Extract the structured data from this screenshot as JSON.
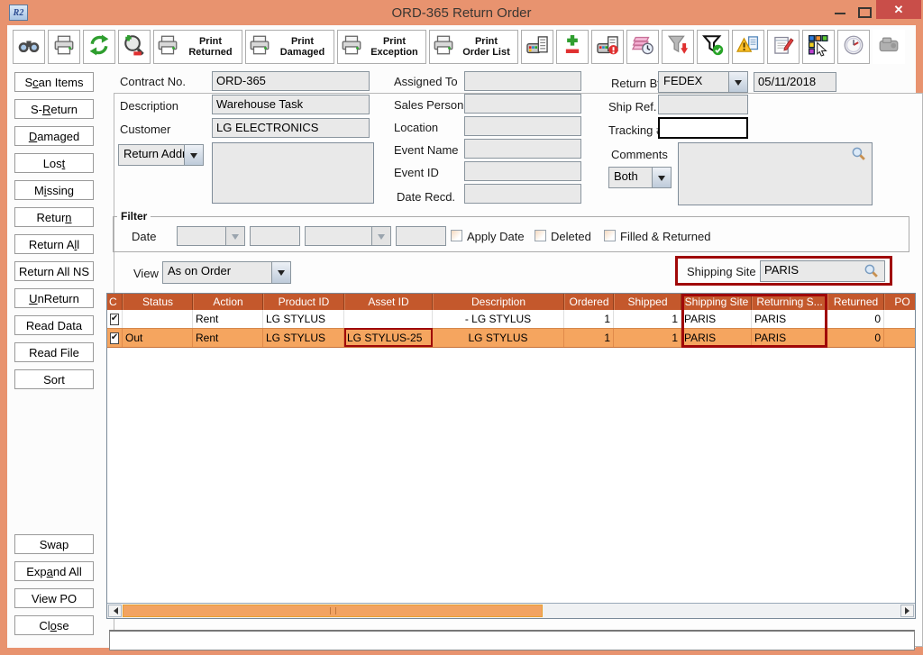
{
  "window": {
    "title": "ORD-365 Return Order",
    "app_icon": "R2"
  },
  "toolbar": {
    "buttons": [
      {
        "type": "icon",
        "icon": "binoculars-icon",
        "name": "find-button"
      },
      {
        "type": "icon",
        "icon": "printer-icon",
        "name": "print-button"
      },
      {
        "type": "icon",
        "icon": "refresh-icon",
        "name": "refresh-button"
      },
      {
        "type": "icon",
        "icon": "zoom-icon",
        "name": "zoom-button"
      },
      {
        "type": "print",
        "icon": "printer-icon",
        "name": "print-returned-button",
        "line1": "Print",
        "line2": "Returned"
      },
      {
        "type": "print",
        "icon": "printer-icon",
        "name": "print-damaged-button",
        "line1": "Print",
        "line2": "Damaged"
      },
      {
        "type": "print",
        "icon": "printer-icon",
        "name": "print-exception-button",
        "line1": "Print",
        "line2": "Exception"
      },
      {
        "type": "print",
        "icon": "printer-icon",
        "name": "print-order-list-button",
        "line1": "Print",
        "line2": "Order List"
      },
      {
        "type": "icon",
        "icon": "scan-device-icon",
        "name": "scan-equipment-button"
      },
      {
        "type": "icon",
        "icon": "plus-minus-icon",
        "name": "add-remove-button"
      },
      {
        "type": "icon",
        "icon": "scan-alert-icon",
        "name": "scan-exception-button"
      },
      {
        "type": "icon",
        "icon": "notes-clock-icon",
        "name": "history-notes-button"
      },
      {
        "type": "icon",
        "icon": "funnel-arrow-icon",
        "name": "apply-filter-button"
      },
      {
        "type": "icon",
        "icon": "funnel-check-icon",
        "name": "filter-ok-button"
      },
      {
        "type": "icon",
        "icon": "warning-doc-icon",
        "name": "exception-report-button"
      },
      {
        "type": "icon",
        "icon": "notepad-pencil-icon",
        "name": "edit-notes-button"
      },
      {
        "type": "icon",
        "icon": "layout-cursor-icon",
        "name": "layout-select-button"
      },
      {
        "type": "icon",
        "icon": "clock-icon",
        "name": "time-button"
      },
      {
        "type": "icon",
        "icon": "device-gray-icon",
        "name": "device-button",
        "disabled": true
      }
    ]
  },
  "sidebar": {
    "top": [
      {
        "label": "Scan Items",
        "u": 1
      },
      {
        "label": "S-Return",
        "u": 2
      },
      {
        "label": "Damaged",
        "u": 0
      },
      {
        "label": "Lost",
        "u": 3
      },
      {
        "label": "Missing",
        "u": 1
      },
      {
        "label": "Return",
        "u": 5
      },
      {
        "label": "Return All",
        "u": 8
      },
      {
        "label": "Return All NS",
        "u": -1
      },
      {
        "label": "UnReturn",
        "u": 0
      },
      {
        "label": "Read Data",
        "u": -1
      },
      {
        "label": "Read File",
        "u": -1
      },
      {
        "label": "Sort",
        "u": -1
      }
    ],
    "bottom": [
      {
        "label": "Swap",
        "u": -1
      },
      {
        "label": "Expand All",
        "u": 3
      },
      {
        "label": "View PO",
        "u": -1
      },
      {
        "label": "Close",
        "u": 2
      }
    ]
  },
  "form": {
    "contract_no": {
      "label": "Contract No.",
      "value": "ORD-365"
    },
    "description": {
      "label": "Description",
      "value": "Warehouse Task"
    },
    "customer": {
      "label": "Customer",
      "value": "LG ELECTRONICS"
    },
    "return_addr": {
      "label": "Return Addr...",
      "value": ""
    },
    "assigned_to": {
      "label": "Assigned To",
      "value": ""
    },
    "sales_person": {
      "label": "Sales Person",
      "value": ""
    },
    "location": {
      "label": "Location",
      "value": ""
    },
    "event_name": {
      "label": "Event Name",
      "value": ""
    },
    "event_id": {
      "label": "Event ID",
      "value": ""
    },
    "date_recd": {
      "label": "Date Recd.",
      "value": ""
    },
    "return_by": {
      "label": "Return By",
      "value": "FEDEX",
      "date": "05/11/2018"
    },
    "ship_ref": {
      "label": "Ship Ref. #",
      "value": ""
    },
    "tracking": {
      "label": "Tracking #",
      "value": ""
    },
    "comments": {
      "label": "Comments",
      "mode": "Both",
      "value": ""
    }
  },
  "filter": {
    "title": "Filter",
    "date_label": "Date",
    "checkboxes": [
      {
        "label": "Apply Date",
        "checked": false
      },
      {
        "label": "Deleted",
        "checked": false
      },
      {
        "label": "Filled & Returned",
        "checked": false
      }
    ]
  },
  "view": {
    "label": "View",
    "value": "As on Order"
  },
  "shipping_site": {
    "label": "Shipping Site",
    "value": "PARIS"
  },
  "table": {
    "columns": [
      {
        "label": "C",
        "w": 17,
        "align": "center"
      },
      {
        "label": "Status",
        "w": 78,
        "align": "left"
      },
      {
        "label": "Action",
        "w": 78,
        "align": "left"
      },
      {
        "label": "Product ID",
        "w": 90,
        "align": "left"
      },
      {
        "label": "Asset ID",
        "w": 98,
        "align": "left"
      },
      {
        "label": "Description",
        "w": 146,
        "align": "center"
      },
      {
        "label": "Ordered",
        "w": 55,
        "align": "right"
      },
      {
        "label": "Shipped",
        "w": 75,
        "align": "right"
      },
      {
        "label": "Shipping Site",
        "w": 78,
        "align": "left"
      },
      {
        "label": "Returning S...",
        "w": 84,
        "align": "left"
      },
      {
        "label": "Returned",
        "w": 63,
        "align": "right"
      },
      {
        "label": "PO",
        "w": 40,
        "align": "right"
      }
    ],
    "rows": [
      {
        "checked": true,
        "selected": false,
        "cells": [
          "",
          "Rent",
          "LG STYLUS",
          "",
          "- LG STYLUS",
          "1",
          "1",
          "PARIS",
          "PARIS",
          "0",
          ""
        ]
      },
      {
        "checked": true,
        "selected": true,
        "cells": [
          "Out",
          "Rent",
          "LG STYLUS",
          "LG STYLUS-25",
          "LG STYLUS",
          "1",
          "1",
          "PARIS",
          "PARIS",
          "0",
          ""
        ]
      }
    ]
  },
  "annotations": {
    "highlight_color": "#A00808",
    "boxes": [
      "shipping-site-field",
      "shipping-and-returning-columns",
      "asset-id-cell-row-2"
    ]
  },
  "status_bar": {
    "value": ""
  }
}
